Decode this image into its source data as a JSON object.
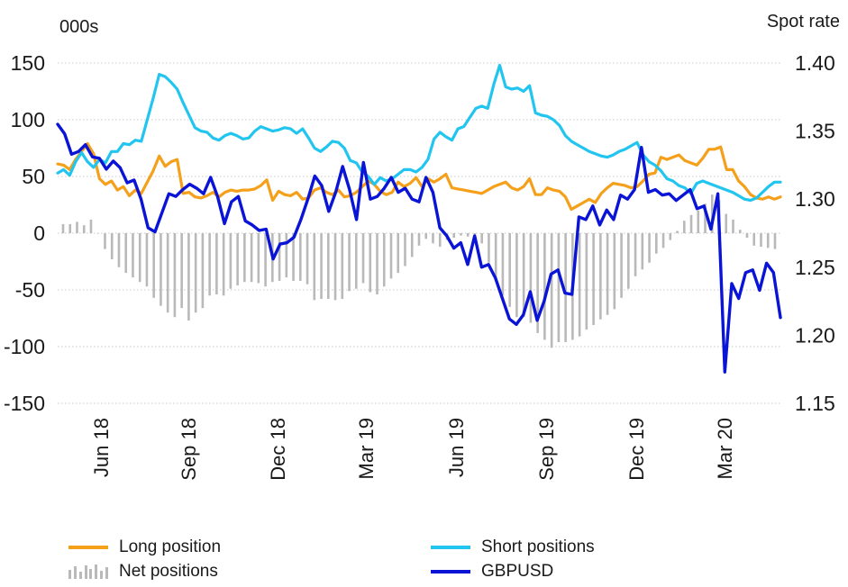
{
  "chart_data": {
    "type": "line",
    "left_unit_label": "000s",
    "right_unit_label": "Spot rate",
    "y_left": {
      "min": -150,
      "max": 150,
      "ticks": [
        150,
        100,
        50,
        0,
        -50,
        -100,
        -150
      ]
    },
    "y_right": {
      "min": 1.15,
      "max": 1.4,
      "ticks": [
        "1.40",
        "1.35",
        "1.30",
        "1.25",
        "1.20",
        "1.15"
      ]
    },
    "x_tick_labels": [
      "Jun 18",
      "Sep 18",
      "Dec 18",
      "Mar 19",
      "Jun 19",
      "Sep 19",
      "Dec 19",
      "Mar 20"
    ],
    "grid": "horizontal dotted",
    "legend_position": "bottom",
    "colors": {
      "long": "#f5a01a",
      "short": "#21c5ef",
      "net": "#b9b9b9",
      "gbpusd": "#0a14d6"
    },
    "series": [
      {
        "name": "Long position",
        "axis": "left",
        "values": [
          61,
          60,
          56,
          65,
          72,
          79,
          70,
          48,
          43,
          46,
          38,
          41,
          33,
          38,
          35,
          45,
          55,
          68,
          59,
          63,
          65,
          35,
          36,
          32,
          31,
          33,
          36,
          32,
          36,
          38,
          37,
          38,
          38,
          39,
          42,
          47,
          29,
          37,
          34,
          33,
          36,
          30,
          31,
          38,
          40,
          36,
          34,
          38,
          32,
          33,
          36,
          41,
          46,
          43,
          37,
          34,
          36,
          45,
          41,
          44,
          49,
          41,
          48,
          45,
          48,
          52,
          40,
          39,
          38,
          37,
          36,
          35,
          38,
          41,
          43,
          45,
          40,
          38,
          41,
          48,
          34,
          34,
          40,
          38,
          37,
          32,
          21,
          24,
          27,
          30,
          27,
          35,
          40,
          44,
          43,
          42,
          40,
          41,
          46,
          52,
          53,
          67,
          65,
          67,
          69,
          64,
          62,
          60,
          66,
          74,
          74,
          76,
          56,
          56,
          46,
          41,
          34,
          31,
          30,
          32,
          30,
          32
        ]
      },
      {
        "name": "Short positions",
        "axis": "left",
        "values": [
          53,
          56,
          51,
          63,
          71,
          63,
          58,
          65,
          62,
          72,
          72,
          79,
          78,
          82,
          81,
          100,
          119,
          140,
          138,
          133,
          127,
          115,
          104,
          93,
          90,
          89,
          84,
          82,
          86,
          88,
          86,
          83,
          84,
          90,
          94,
          92,
          90,
          91,
          93,
          92,
          88,
          92,
          84,
          75,
          72,
          76,
          81,
          80,
          75,
          64,
          62,
          54,
          50,
          43,
          49,
          46,
          48,
          52,
          56,
          56,
          54,
          58,
          65,
          83,
          89,
          85,
          82,
          92,
          94,
          102,
          110,
          112,
          110,
          131,
          148,
          129,
          127,
          128,
          125,
          130,
          106,
          104,
          103,
          100,
          95,
          86,
          81,
          78,
          75,
          72,
          70,
          68,
          67,
          69,
          72,
          74,
          77,
          80,
          69,
          63,
          60,
          55,
          48,
          46,
          42,
          40,
          35,
          44,
          46,
          44,
          42,
          40,
          38,
          36,
          33,
          30,
          29,
          31,
          36,
          41,
          45,
          45
        ]
      },
      {
        "name": "Net positions",
        "axis": "left",
        "values": [
          8,
          8,
          10,
          7,
          12,
          0,
          -14,
          -23,
          -30,
          -35,
          -39,
          -43,
          -47,
          -57,
          -64,
          -70,
          -74,
          -66,
          -77,
          -70,
          -66,
          -55,
          -54,
          -55,
          -49,
          -46,
          -43,
          -43,
          -44,
          -47,
          -43,
          -42,
          -39,
          -42,
          -42,
          -45,
          -59,
          -58,
          -58,
          -59,
          -58,
          -51,
          -49,
          -44,
          -52,
          -54,
          -47,
          -40,
          -35,
          -29,
          -21,
          -11,
          -5,
          -9,
          -12,
          -6,
          -4,
          -2,
          -3,
          -5,
          -9,
          -26,
          -40,
          -55,
          -65,
          -74,
          -74,
          -79,
          -88,
          -94,
          -101,
          -96,
          -96,
          -94,
          -91,
          -85,
          -81,
          -76,
          -72,
          -67,
          -57,
          -49,
          -38,
          -32,
          -26,
          -18,
          -13,
          -6,
          2,
          11,
          16,
          20,
          26,
          34,
          29,
          17,
          12,
          3,
          -4,
          -11,
          -12,
          -13,
          -14
        ]
      },
      {
        "name": "GBPUSD",
        "axis": "right",
        "values": [
          1.355,
          1.348,
          1.333,
          1.335,
          1.34,
          1.331,
          1.33,
          1.322,
          1.328,
          1.323,
          1.312,
          1.314,
          1.3,
          1.279,
          1.276,
          1.29,
          1.304,
          1.302,
          1.307,
          1.311,
          1.308,
          1.304,
          1.316,
          1.302,
          1.282,
          1.298,
          1.302,
          1.284,
          1.281,
          1.277,
          1.278,
          1.256,
          1.267,
          1.268,
          1.272,
          1.285,
          1.3,
          1.317,
          1.31,
          1.291,
          1.305,
          1.324,
          1.307,
          1.285,
          1.327,
          1.3,
          1.302,
          1.308,
          1.316,
          1.305,
          1.308,
          1.3,
          1.298,
          1.316,
          1.305,
          1.279,
          1.273,
          1.264,
          1.268,
          1.252,
          1.273,
          1.25,
          1.252,
          1.242,
          1.227,
          1.212,
          1.208,
          1.215,
          1.232,
          1.211,
          1.225,
          1.245,
          1.248,
          1.231,
          1.23,
          1.287,
          1.285,
          1.295,
          1.281,
          1.292,
          1.285,
          1.303,
          1.3,
          1.307,
          1.338,
          1.305,
          1.307,
          1.303,
          1.304,
          1.299,
          1.303,
          1.307,
          1.293,
          1.295,
          1.278,
          1.304,
          1.173,
          1.238,
          1.227,
          1.246,
          1.248,
          1.233,
          1.253,
          1.246,
          1.213
        ]
      }
    ]
  },
  "legend": {
    "long": "Long position",
    "net": "Net positions",
    "short": "Short positions",
    "gbpusd": "GBPUSD"
  }
}
